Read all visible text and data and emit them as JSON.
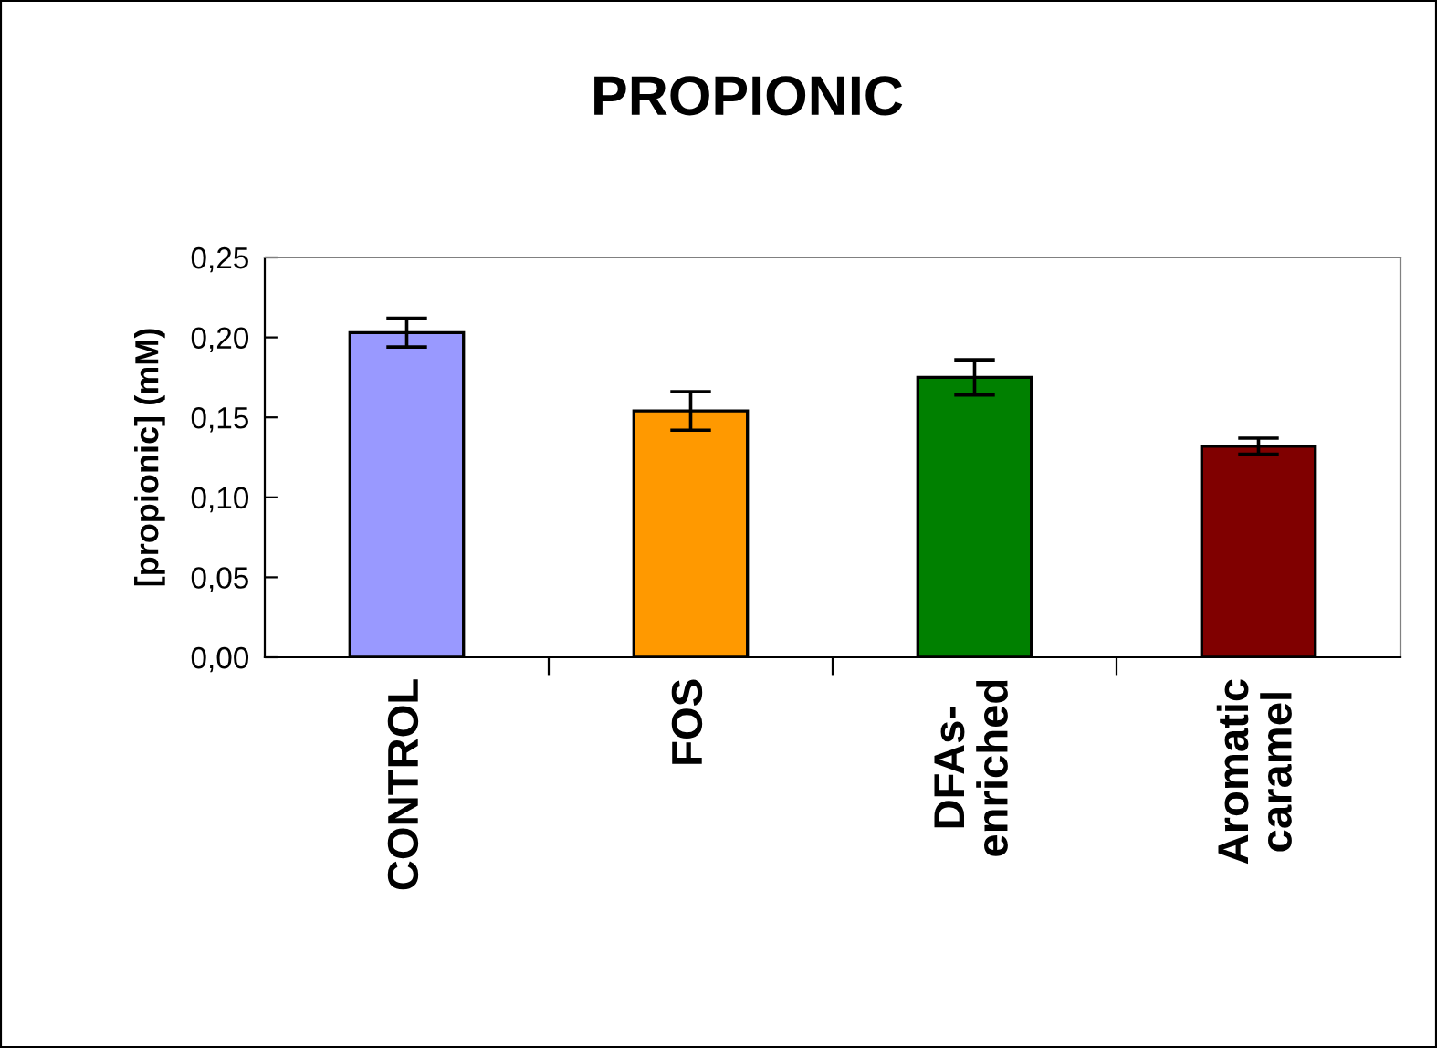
{
  "chart_data": {
    "type": "bar",
    "title": "PROPIONIC",
    "ylabel": "[propionic] (mM)",
    "categories": [
      "CONTROL",
      "FOS",
      "DFAs-\nenriched",
      "Aromatic\ncaramel"
    ],
    "values": [
      0.203,
      0.154,
      0.175,
      0.132
    ],
    "errors": [
      0.009,
      0.012,
      0.011,
      0.005
    ],
    "colors": [
      "#9999ff",
      "#ff9900",
      "#008000",
      "#800000"
    ],
    "ylim": [
      0,
      0.25
    ],
    "yticks": [
      {
        "value": 0,
        "label": "0,00"
      },
      {
        "value": 0.05,
        "label": "0,05"
      },
      {
        "value": 0.1,
        "label": "0,10"
      },
      {
        "value": 0.15,
        "label": "0,15"
      },
      {
        "value": 0.2,
        "label": "0,20"
      },
      {
        "value": 0.25,
        "label": "0,25"
      }
    ],
    "grid": false
  }
}
